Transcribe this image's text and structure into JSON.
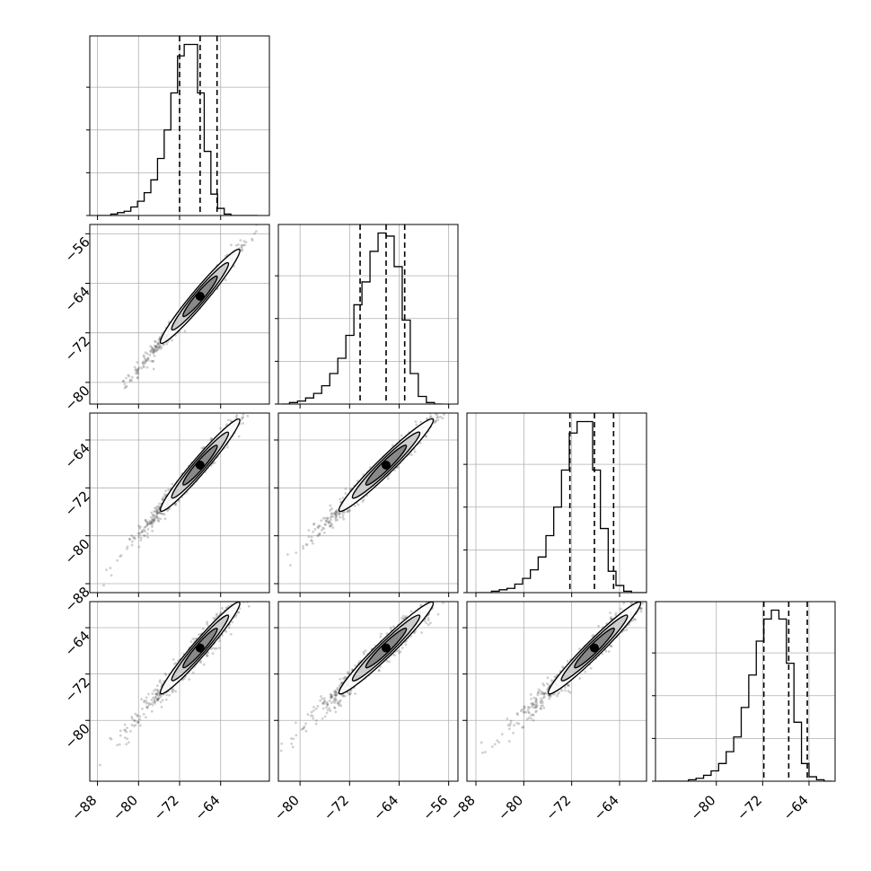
{
  "chart_data": {
    "type": "corner",
    "title": "",
    "n_params": 4,
    "axis_labels": [
      "",
      "",
      "",
      ""
    ],
    "ranges": [
      [
        -89.5,
        -54.5
      ],
      [
        -83.5,
        -54.5
      ],
      [
        -89.5,
        -59.5
      ],
      [
        -90.5,
        -59.5
      ]
    ],
    "ticks": [
      [
        "−88",
        "−80",
        "−72",
        "−64"
      ],
      [
        "−80",
        "−72",
        "−64",
        "−56"
      ],
      [
        "−88",
        "−80",
        "−72",
        "−64"
      ],
      [
        "−80",
        "−72",
        "−64"
      ]
    ],
    "tick_values": [
      [
        -88,
        -80,
        -72,
        -64
      ],
      [
        -80,
        -72,
        -64,
        -56
      ],
      [
        -88,
        -80,
        -72,
        -64
      ],
      [
        -80,
        -72,
        -64
      ]
    ],
    "quantiles": [
      [
        -72.0,
        -68.0,
        -64.7
      ],
      [
        -70.3,
        -66.1,
        -63.1
      ],
      [
        -72.3,
        -68.2,
        -65.0
      ],
      [
        -71.8,
        -67.5,
        -64.3
      ]
    ],
    "histograms": [
      {
        "bin_edges": [
          -88,
          -86.7,
          -85.4,
          -84.1,
          -82.8,
          -81.5,
          -80.2,
          -78.9,
          -77.6,
          -76.3,
          -75.0,
          -73.7,
          -72.4,
          -71.1,
          -69.8,
          -68.5,
          -67.2,
          -65.9,
          -64.6,
          -63.3,
          -62.0,
          -60.7,
          -59.4,
          -58.1,
          -56.8
        ],
        "counts": [
          0,
          0,
          1,
          2,
          3,
          6,
          10,
          16,
          25,
          40,
          60,
          86,
          112,
          120,
          120,
          86,
          45,
          15,
          5,
          1,
          0,
          0,
          0,
          0
        ]
      },
      {
        "bin_edges": [
          -83,
          -81.7,
          -80.4,
          -79.1,
          -77.8,
          -76.5,
          -75.2,
          -73.9,
          -72.6,
          -71.3,
          -70.0,
          -68.7,
          -67.4,
          -66.1,
          -64.8,
          -63.5,
          -62.2,
          -60.9,
          -59.6,
          -58.3,
          -57.0
        ],
        "counts": [
          0,
          1,
          2,
          4,
          7,
          12,
          20,
          30,
          45,
          65,
          80,
          100,
          112,
          110,
          90,
          55,
          20,
          5,
          1,
          0
        ]
      },
      {
        "bin_edges": [
          -88,
          -86.7,
          -85.4,
          -84.1,
          -82.8,
          -81.5,
          -80.2,
          -78.9,
          -77.6,
          -76.3,
          -75.0,
          -73.7,
          -72.4,
          -71.1,
          -69.8,
          -68.5,
          -67.2,
          -65.9,
          -64.6,
          -63.3,
          -62.0,
          -60.7,
          -59.4
        ],
        "counts": [
          0,
          0,
          1,
          2,
          3,
          6,
          10,
          16,
          25,
          40,
          60,
          86,
          112,
          120,
          120,
          86,
          45,
          15,
          5,
          1,
          0,
          0
        ]
      },
      {
        "bin_edges": [
          -90,
          -88.7,
          -87.4,
          -86.1,
          -84.8,
          -83.5,
          -82.2,
          -80.9,
          -79.6,
          -78.3,
          -77.0,
          -75.7,
          -74.4,
          -73.1,
          -71.8,
          -70.5,
          -69.2,
          -67.9,
          -66.6,
          -65.3,
          -64.0,
          -62.7,
          -61.4,
          -60.1
        ],
        "counts": [
          0,
          0,
          0,
          0,
          1,
          2,
          4,
          7,
          12,
          20,
          30,
          50,
          72,
          95,
          110,
          116,
          110,
          80,
          40,
          12,
          3,
          1,
          0
        ]
      }
    ],
    "correlations": [
      [
        1,
        0.98,
        0.97,
        0.96
      ],
      [
        0.98,
        1,
        0.97,
        0.96
      ],
      [
        0.97,
        0.97,
        1,
        0.96
      ],
      [
        0.96,
        0.96,
        0.96,
        1
      ]
    ],
    "contour_levels": [
      0.2,
      0.4,
      0.6
    ],
    "grid": true
  }
}
